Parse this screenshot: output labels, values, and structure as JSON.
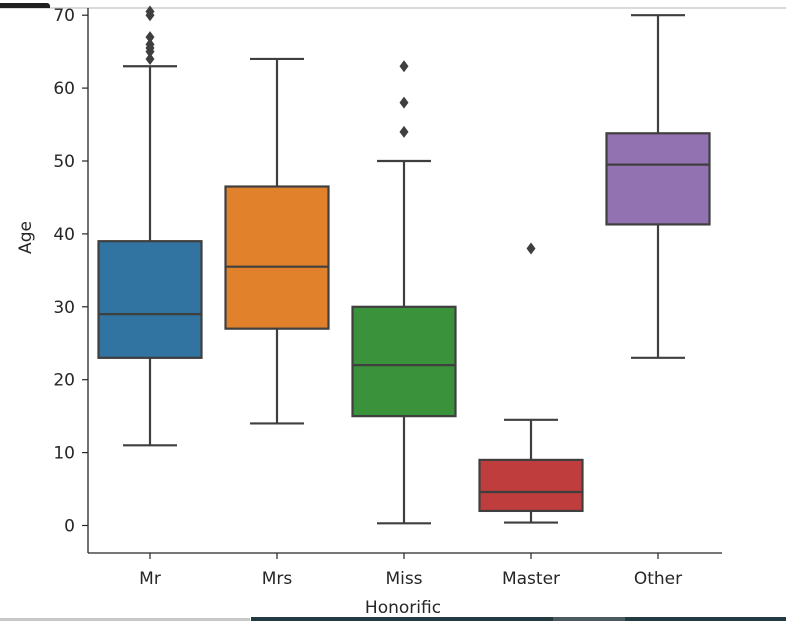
{
  "chart_data": {
    "type": "box",
    "title": "",
    "xlabel": "Honorific",
    "ylabel": "Age",
    "ylim": [
      -3.8,
      71
    ],
    "yticks": [
      0,
      10,
      20,
      30,
      40,
      50,
      60,
      70
    ],
    "ytick_labels": [
      "0",
      "10",
      "20",
      "30",
      "40",
      "50",
      "60",
      "70"
    ],
    "grid": false,
    "categories": [
      "Mr",
      "Mrs",
      "Miss",
      "Master",
      "Other"
    ],
    "boxes": [
      {
        "name": "Mr",
        "color": "#3274a1",
        "whislo": 11,
        "q1": 23,
        "median": 29,
        "q3": 39,
        "whishi": 63,
        "fliers": [
          64,
          65,
          65.5,
          66,
          67,
          70,
          70.5
        ]
      },
      {
        "name": "Mrs",
        "color": "#e1812c",
        "whislo": 14,
        "q1": 27,
        "median": 35.5,
        "q3": 46.5,
        "whishi": 64,
        "fliers": []
      },
      {
        "name": "Miss",
        "color": "#3a923a",
        "whislo": 0.3,
        "q1": 15,
        "median": 22,
        "q3": 30,
        "whishi": 50,
        "fliers": [
          54,
          58,
          63
        ]
      },
      {
        "name": "Master",
        "color": "#c03d3e",
        "whislo": 0.4,
        "q1": 2,
        "median": 4.6,
        "q3": 9,
        "whishi": 14.5,
        "fliers": [
          38
        ]
      },
      {
        "name": "Other",
        "color": "#9372b2",
        "whislo": 23,
        "q1": 41.3,
        "median": 49.5,
        "q3": 53.8,
        "whishi": 70,
        "fliers": []
      }
    ],
    "line_color": "#3f3f3f"
  }
}
